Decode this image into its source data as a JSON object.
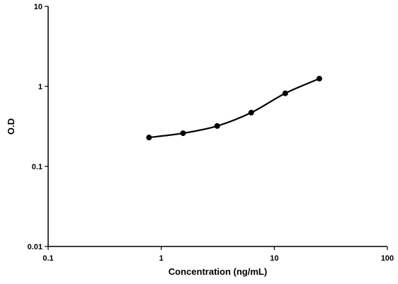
{
  "chart_data": {
    "type": "line",
    "title": "",
    "xlabel": "Concentration (ng/mL)",
    "ylabel": "O.D",
    "xscale": "log",
    "yscale": "log",
    "xlim": [
      0.1,
      100
    ],
    "ylim": [
      0.01,
      10
    ],
    "xticks": [
      0.1,
      1,
      10,
      100
    ],
    "xtick_labels": [
      "0.1",
      "1",
      "10",
      "100"
    ],
    "yticks": [
      0.01,
      0.1,
      1,
      10
    ],
    "ytick_labels": [
      "0.01",
      "0.1",
      "1",
      "10"
    ],
    "grid": false,
    "legend": "none",
    "series": [
      {
        "x": [
          0.78,
          1.56,
          3.125,
          6.25,
          12.5,
          25
        ],
        "y": [
          0.23,
          0.26,
          0.32,
          0.47,
          0.82,
          1.25
        ],
        "color": "#000000",
        "marker": "circle",
        "smooth": true
      }
    ]
  }
}
